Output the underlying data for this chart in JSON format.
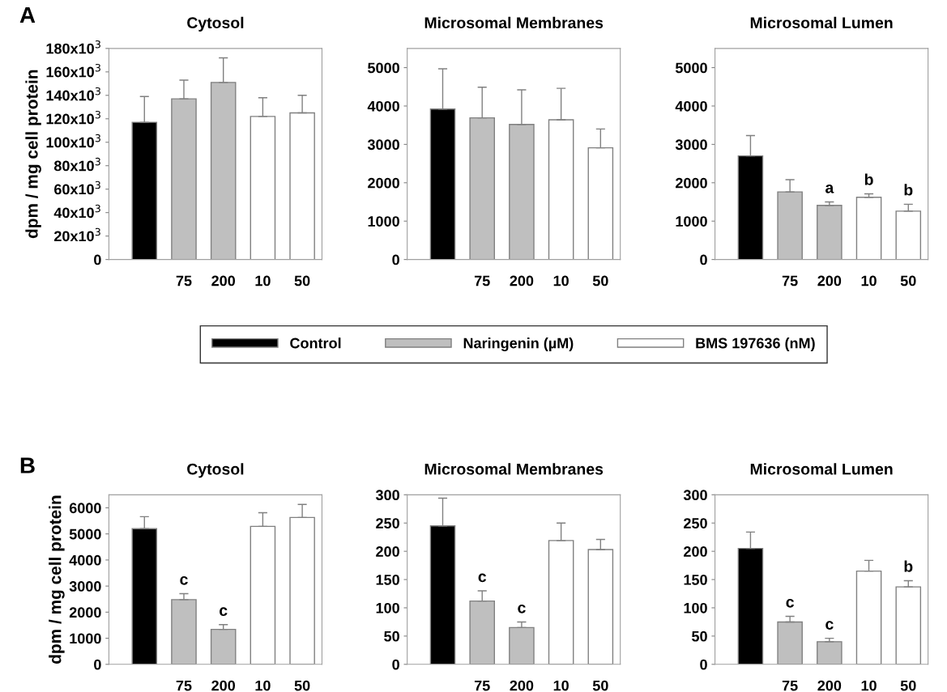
{
  "chart_data": [
    {
      "type": "bar",
      "title": "Cytosol",
      "ylabel": "dpm / mg cell protein",
      "annotations": [
        "A"
      ],
      "categories": [
        null,
        "75",
        "200",
        "10",
        "50"
      ],
      "ylim": [
        0,
        180000
      ],
      "yticks": [
        0,
        {
          "value": 20000,
          "label": "20x10$^{3}$"
        },
        {
          "value": 40000,
          "label": "40x10$^{3}$"
        },
        {
          "value": 60000,
          "label": "60x10$^{3}$"
        },
        {
          "value": 80000,
          "label": "80x10$^{3}$"
        },
        {
          "value": 100000,
          "label": "100x10$^{3}$"
        },
        {
          "value": 120000,
          "label": "120x10$^{3}$"
        },
        {
          "value": 140000,
          "label": "140x10$^{3}$"
        },
        {
          "value": 160000,
          "label": "160x10$^{3}$"
        },
        {
          "value": 180000,
          "label": "180x10$^{3}$"
        }
      ],
      "series": [
        {
          "color": "#000000",
          "values": [
            117000,
            null,
            null,
            null,
            null
          ],
          "errors": [
            [
              117000,
              139000
            ],
            null,
            null,
            null,
            null
          ]
        },
        {
          "color": "#bfbfbf",
          "values": [
            null,
            137000,
            151000,
            null,
            null
          ],
          "errors": [
            null,
            [
              137000,
              153000
            ],
            [
              151000,
              172000
            ],
            null,
            null
          ]
        },
        {
          "color": "#ffffff",
          "values": [
            null,
            null,
            null,
            122000,
            125000
          ],
          "errors": [
            null,
            null,
            null,
            [
              122000,
              138000
            ],
            [
              125000,
              140000
            ]
          ]
        }
      ]
    },
    {
      "type": "bar",
      "title": "Microsomal Membranes",
      "categories": [
        null,
        "75",
        "200",
        "10",
        "50"
      ],
      "ylim": [
        0,
        5500
      ],
      "yticks": [
        0,
        1000,
        2000,
        3000,
        4000,
        5000
      ],
      "legend": "bottom",
      "series": [
        {
          "name": "Control",
          "color": "#000000",
          "values": [
            3920,
            null,
            null,
            null,
            null
          ],
          "errors": [
            [
              3920,
              4970
            ],
            null,
            null,
            null,
            null
          ]
        },
        {
          "name": "Naringenin (µM)",
          "color": "#bfbfbf",
          "values": [
            null,
            3690,
            3520,
            null,
            null
          ],
          "errors": [
            null,
            [
              3690,
              4490
            ],
            [
              3520,
              4420
            ],
            null,
            null
          ]
        },
        {
          "name": "BMS 197636 (nM)",
          "color": "#ffffff",
          "values": [
            null,
            null,
            null,
            3640,
            2910
          ],
          "errors": [
            null,
            null,
            null,
            [
              3640,
              4460
            ],
            [
              2910,
              3400
            ]
          ]
        }
      ]
    },
    {
      "type": "bar",
      "title": "Microsomal Lumen",
      "categories": [
        null,
        "75",
        "200",
        "10",
        "50"
      ],
      "ylim": [
        0,
        5500
      ],
      "yticks": [
        0,
        1000,
        2000,
        3000,
        4000,
        5000
      ],
      "annotations": [
        {
          "text": "a",
          "x": "200",
          "y": 1500
        },
        {
          "text": "b",
          "x": "10",
          "y": 1710
        },
        {
          "text": "b",
          "x": "50",
          "y": 1440
        }
      ],
      "series": [
        {
          "color": "#000000",
          "values": [
            2700,
            null,
            null,
            null,
            null
          ],
          "errors": [
            [
              2700,
              3230
            ],
            null,
            null,
            null,
            null
          ]
        },
        {
          "color": "#bfbfbf",
          "values": [
            null,
            1760,
            1410,
            null,
            null
          ],
          "errors": [
            null,
            [
              1760,
              2080
            ],
            [
              1410,
              1500
            ],
            null,
            null
          ]
        },
        {
          "color": "#ffffff",
          "values": [
            null,
            null,
            null,
            1620,
            1260
          ],
          "errors": [
            null,
            null,
            null,
            [
              1620,
              1710
            ],
            [
              1260,
              1440
            ]
          ]
        }
      ]
    },
    {
      "type": "bar",
      "title": "Cytosol",
      "ylabel": "dpm / mg cell protein",
      "categories": [
        null,
        "75",
        "200",
        "10",
        "50"
      ],
      "ylim": [
        0,
        6500
      ],
      "yticks": [
        0,
        1000,
        2000,
        3000,
        4000,
        5000,
        6000
      ],
      "annotations": [
        "B",
        {
          "text": "c",
          "x": "75",
          "y": 2710
        },
        {
          "text": "c",
          "x": "200",
          "y": 1520
        }
      ],
      "series": [
        {
          "color": "#000000",
          "values": [
            5200,
            null,
            null,
            null,
            null
          ],
          "errors": [
            [
              5200,
              5660
            ],
            null,
            null,
            null,
            null
          ]
        },
        {
          "color": "#bfbfbf",
          "values": [
            null,
            2480,
            1340,
            null,
            null
          ],
          "errors": [
            null,
            [
              2480,
              2710
            ],
            [
              1340,
              1520
            ],
            null,
            null
          ]
        },
        {
          "color": "#ffffff",
          "values": [
            null,
            null,
            null,
            5290,
            5630
          ],
          "errors": [
            null,
            null,
            null,
            [
              5290,
              5810
            ],
            [
              5630,
              6130
            ]
          ]
        }
      ]
    },
    {
      "type": "bar",
      "title": "Microsomal Membranes",
      "categories": [
        null,
        "75",
        "200",
        "10",
        "50"
      ],
      "ylim": [
        0,
        300
      ],
      "yticks": [
        0,
        50,
        100,
        150,
        200,
        250,
        300
      ],
      "annotations": [
        {
          "text": "c",
          "x": "75",
          "y": 130
        },
        {
          "text": "c",
          "x": "200",
          "y": 75
        }
      ],
      "series": [
        {
          "color": "#000000",
          "values": [
            245,
            null,
            null,
            null,
            null
          ],
          "errors": [
            [
              245,
              294
            ],
            null,
            null,
            null,
            null
          ]
        },
        {
          "color": "#bfbfbf",
          "values": [
            null,
            112,
            65,
            null,
            null
          ],
          "errors": [
            null,
            [
              112,
              130
            ],
            [
              65,
              75
            ],
            null,
            null
          ]
        },
        {
          "color": "#ffffff",
          "values": [
            null,
            null,
            null,
            219,
            203
          ],
          "errors": [
            null,
            null,
            null,
            [
              219,
              250
            ],
            [
              203,
              221
            ]
          ]
        }
      ]
    },
    {
      "type": "bar",
      "title": "Microsomal Lumen",
      "categories": [
        null,
        "75",
        "200",
        "10",
        "50"
      ],
      "ylim": [
        0,
        300
      ],
      "yticks": [
        0,
        50,
        100,
        150,
        200,
        250,
        300
      ],
      "annotations": [
        {
          "text": "c",
          "x": "75",
          "y": 85
        },
        {
          "text": "c",
          "x": "200",
          "y": 46
        },
        {
          "text": "b",
          "x": "50",
          "y": 148
        }
      ],
      "series": [
        {
          "color": "#000000",
          "values": [
            205,
            null,
            null,
            null,
            null
          ],
          "errors": [
            [
              205,
              234
            ],
            null,
            null,
            null,
            null
          ]
        },
        {
          "color": "#bfbfbf",
          "values": [
            null,
            75,
            40,
            null,
            null
          ],
          "errors": [
            null,
            [
              75,
              85
            ],
            [
              40,
              46
            ],
            null,
            null
          ]
        },
        {
          "color": "#ffffff",
          "values": [
            null,
            null,
            null,
            165,
            137
          ],
          "errors": [
            null,
            null,
            null,
            [
              165,
              184
            ],
            [
              137,
              148
            ]
          ]
        }
      ]
    }
  ]
}
